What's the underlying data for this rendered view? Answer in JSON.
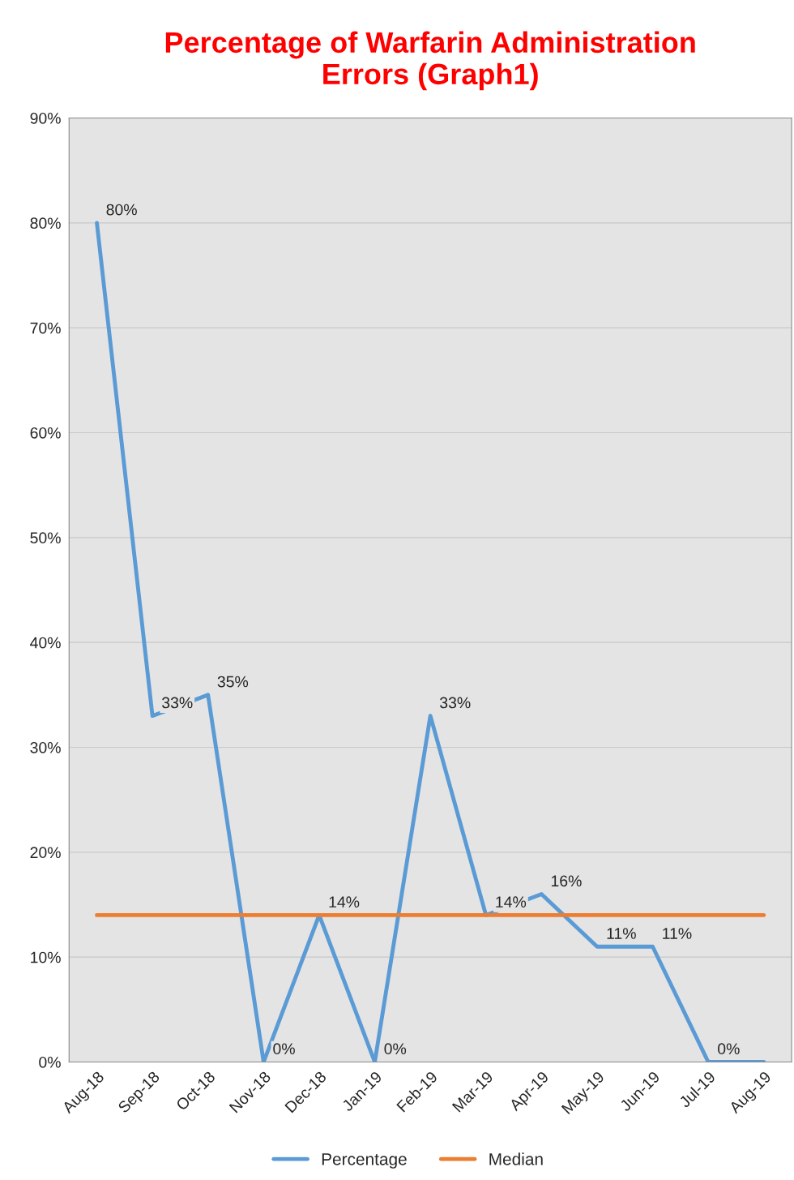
{
  "chart_data": {
    "type": "line",
    "title": "Percentage of Warfarin Administration\nErrors (Graph1)",
    "categories": [
      "Aug-18",
      "Sep-18",
      "Oct-18",
      "Nov-18",
      "Dec-18",
      "Jan-19",
      "Feb-19",
      "Mar-19",
      "Apr-19",
      "May-19",
      "Jun-19",
      "Jul-19",
      "Aug-19"
    ],
    "series": [
      {
        "name": "Percentage",
        "color": "#5b9bd5",
        "values": [
          80,
          33,
          35,
          0,
          14,
          0,
          33,
          14,
          16,
          11,
          11,
          0,
          0
        ],
        "value_labels": [
          "80%",
          "33%",
          "35%",
          "0%",
          "14%",
          "0%",
          "33%",
          "14%",
          "16%",
          "11%",
          "11%",
          "0%",
          null
        ]
      },
      {
        "name": "Median",
        "color": "#ed7d31",
        "values": [
          14,
          14,
          14,
          14,
          14,
          14,
          14,
          14,
          14,
          14,
          14,
          14,
          14
        ]
      }
    ],
    "ylim": [
      0,
      90
    ],
    "yticks": [
      {
        "value": 0,
        "label": "0%"
      },
      {
        "value": 10,
        "label": "10%"
      },
      {
        "value": 20,
        "label": "20%"
      },
      {
        "value": 30,
        "label": "30%"
      },
      {
        "value": 40,
        "label": "40%"
      },
      {
        "value": 50,
        "label": "50%"
      },
      {
        "value": 60,
        "label": "60%"
      },
      {
        "value": 70,
        "label": "70%"
      },
      {
        "value": 80,
        "label": "80%"
      },
      {
        "value": 90,
        "label": "90%"
      }
    ],
    "grid": "y",
    "legend": "bottom",
    "marker": "none",
    "line_style": "solid"
  }
}
